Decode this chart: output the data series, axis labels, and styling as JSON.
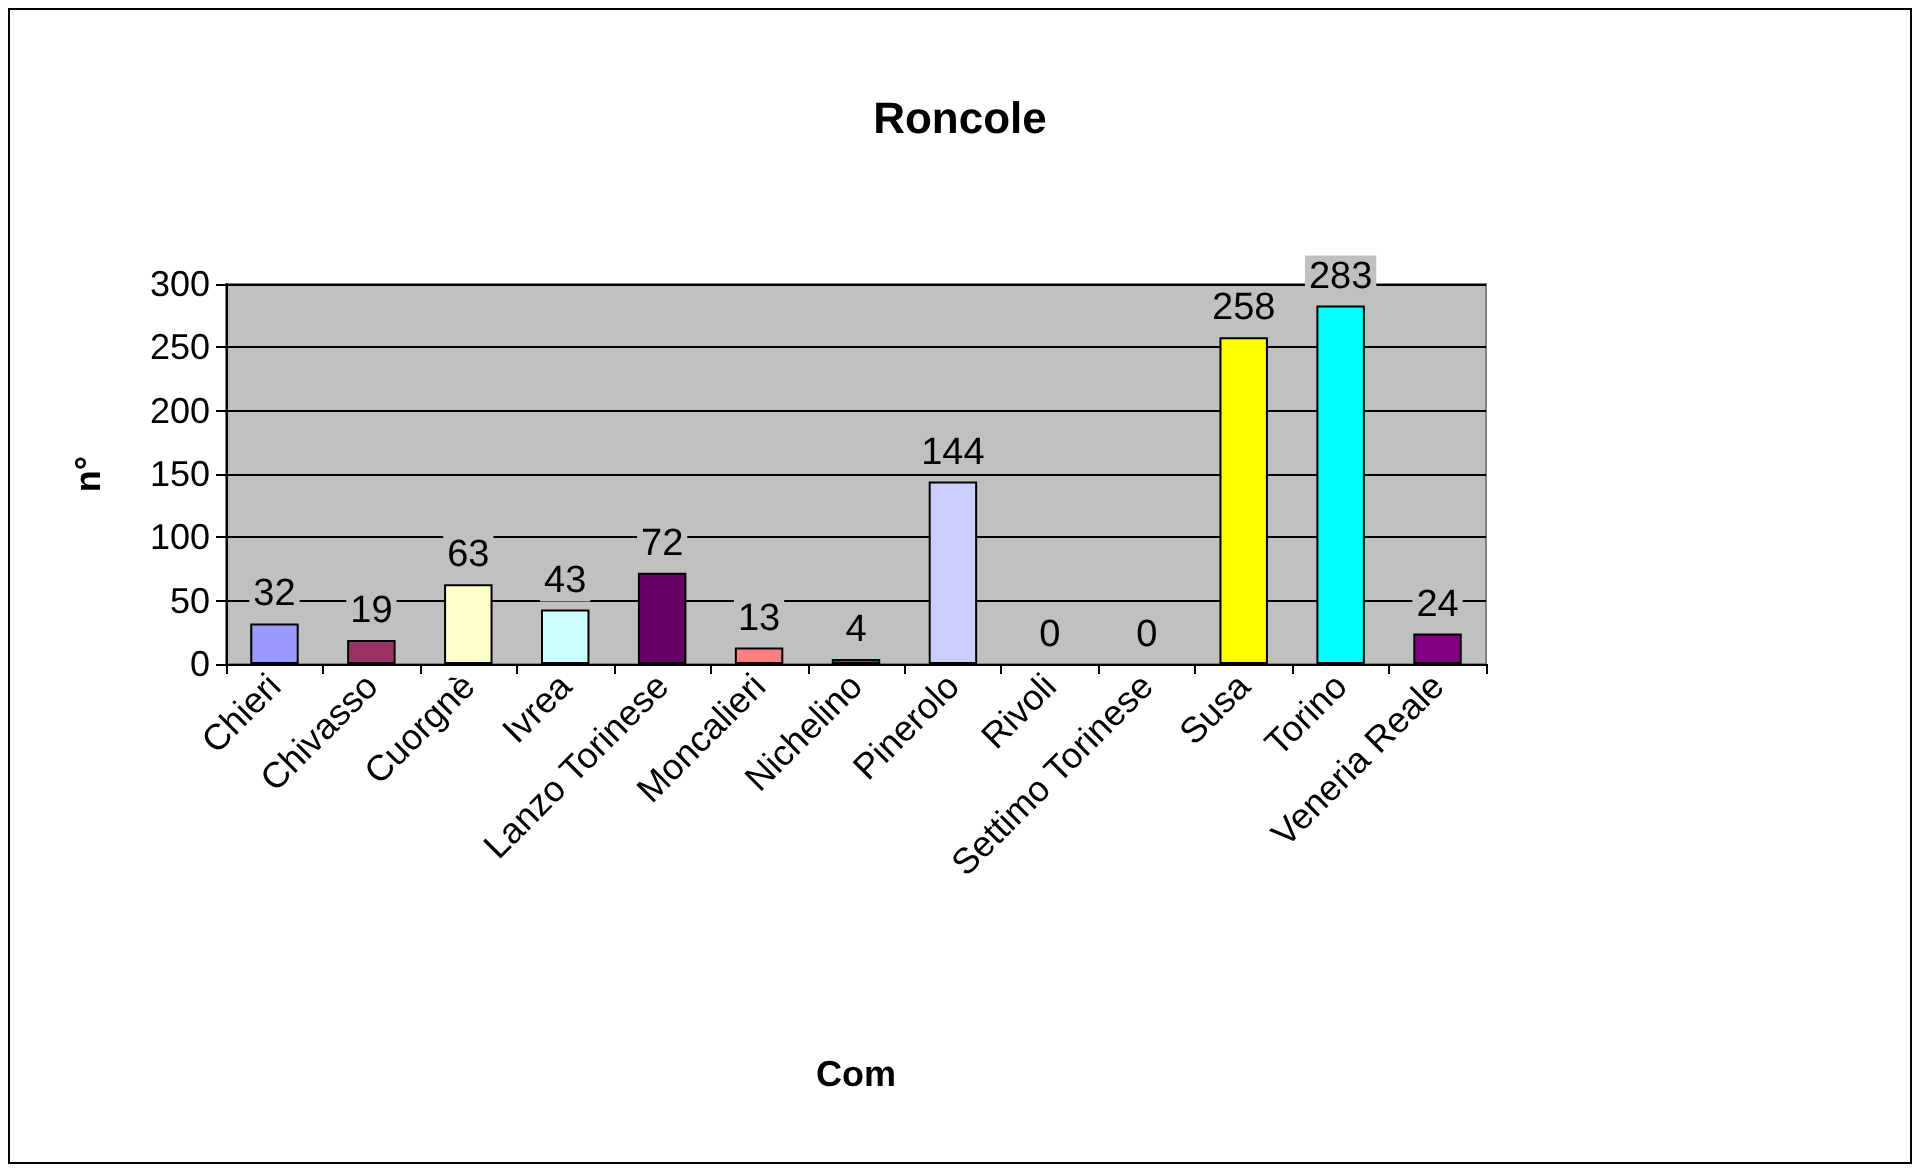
{
  "chart_data": {
    "type": "bar",
    "title": "Roncole",
    "xlabel": "Com",
    "ylabel": "n°",
    "categories": [
      "Chieri",
      "Chivasso",
      "Cuorgnè",
      "Ivrea",
      "Lanzo Torinese",
      "Moncalieri",
      "Nichelino",
      "Pinerolo",
      "Rivoli",
      "Settimo Torinese",
      "Susa",
      "Torino",
      "Veneria Reale"
    ],
    "values": [
      32,
      19,
      63,
      43,
      72,
      13,
      4,
      144,
      0,
      0,
      258,
      283,
      24
    ],
    "colors": [
      "#9999ff",
      "#993366",
      "#ffffcc",
      "#ccffff",
      "#660066",
      "#ff8080",
      "#0066cc",
      "#ccccff",
      null,
      null,
      "#ffff00",
      "#00ffff",
      "#800080"
    ],
    "ylim": [
      0,
      300
    ],
    "yticks": [
      0,
      50,
      100,
      150,
      200,
      250,
      300
    ],
    "grid": "y",
    "data_labels": true
  }
}
